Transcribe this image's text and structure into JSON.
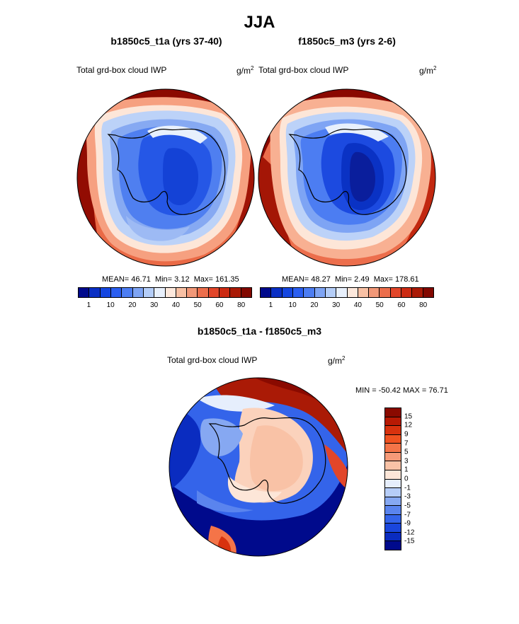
{
  "title": "JJA",
  "panels": [
    {
      "title": "b1850c5_t1a (yrs 37-40)",
      "field_label": "Total grd-box cloud IWP",
      "units": "g/m",
      "units_sup": "2",
      "stats": {
        "mean_label": "MEAN=",
        "mean": "46.71",
        "min_label": "Min=",
        "min": "3.12",
        "max_label": "Max=",
        "max": "161.35"
      }
    },
    {
      "title": "f1850c5_m3 (yrs 2-6)",
      "field_label": "Total grd-box cloud IWP",
      "units": "g/m",
      "units_sup": "2",
      "stats": {
        "mean_label": "MEAN=",
        "mean": "48.27",
        "min_label": "Min=",
        "min": "2.49",
        "max_label": "Max=",
        "max": "178.61"
      }
    }
  ],
  "diff": {
    "title": "b1850c5_t1a - f1850c5_m3",
    "field_label": "Total grd-box cloud IWP",
    "units": "g/m",
    "units_sup": "2",
    "minmax": "MIN = -50.42 MAX =  76.71"
  },
  "colorbar_main": {
    "colors": [
      "#000a8c",
      "#0a2fc4",
      "#1446e0",
      "#2a5ef0",
      "#4c7df2",
      "#7ea4f4",
      "#b4cdf8",
      "#e8f0fc",
      "#fde8dc",
      "#f8c0a4",
      "#f29878",
      "#ec6e4c",
      "#e2462a",
      "#cc2a12",
      "#aa1a06",
      "#820800"
    ],
    "tick_labels": [
      "1",
      "10",
      "20",
      "30",
      "40",
      "50",
      "60",
      "80"
    ]
  },
  "colorbar_diff": {
    "colors": [
      "#8a0a00",
      "#b81a04",
      "#d8320e",
      "#f05220",
      "#f47448",
      "#f69a78",
      "#f9c2a6",
      "#fde6d8",
      "#e6eefc",
      "#b6cdf8",
      "#86a8f2",
      "#5a84ee",
      "#3464ea",
      "#1a46dc",
      "#0a2cc0",
      "#000a8c"
    ],
    "tick_labels": [
      "15",
      "12",
      "9",
      "7",
      "5",
      "3",
      "1",
      "0",
      "-1",
      "-3",
      "-5",
      "-7",
      "-9",
      "-12",
      "-15"
    ]
  }
}
